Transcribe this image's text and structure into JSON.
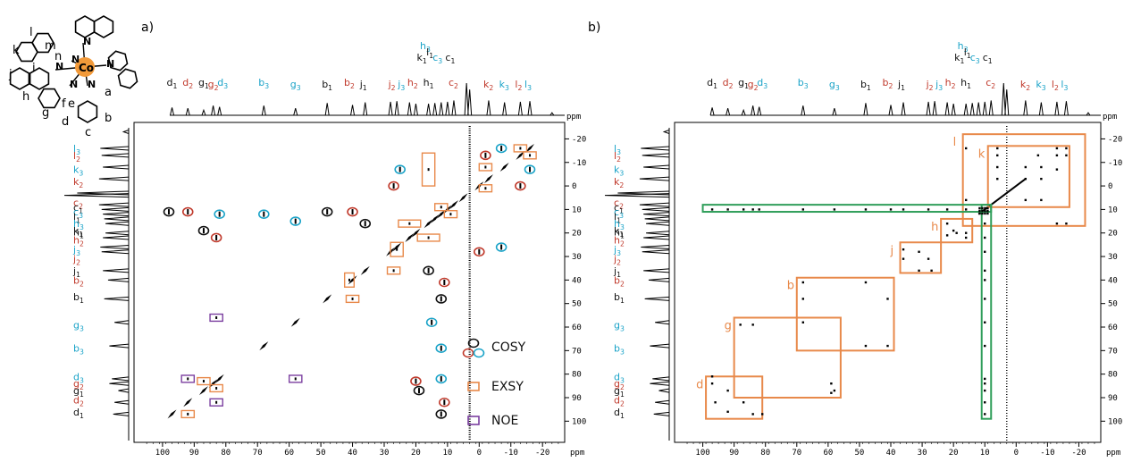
{
  "figure": {
    "panels": [
      {
        "label": "a)"
      },
      {
        "label": "b)"
      }
    ],
    "axis_unit": "ppm",
    "x_ticks": [
      100,
      90,
      80,
      70,
      60,
      50,
      40,
      30,
      20,
      10,
      0,
      -10,
      -20
    ],
    "y_ticks": [
      -20,
      -10,
      0,
      10,
      20,
      30,
      40,
      50,
      60,
      70,
      80,
      90,
      100
    ],
    "colors": {
      "black": "#111111",
      "red": "#c0392b",
      "cyan": "#1aa3c8",
      "orange": "#e8894a",
      "purple": "#7b3fa0",
      "green": "#2f9e5a"
    }
  },
  "structure": {
    "metal_label": "Co",
    "atom_labels": [
      {
        "t": "l",
        "x": 33,
        "y": 40
      },
      {
        "t": "m",
        "x": 50,
        "y": 55
      },
      {
        "t": "k",
        "x": 14,
        "y": 60
      },
      {
        "t": "n",
        "x": 61,
        "y": 67
      },
      {
        "t": "j",
        "x": 10,
        "y": 87
      },
      {
        "t": "i",
        "x": 36,
        "y": 80
      },
      {
        "t": "h",
        "x": 25,
        "y": 112
      },
      {
        "t": "g",
        "x": 47,
        "y": 130
      },
      {
        "t": "f",
        "x": 69,
        "y": 120
      },
      {
        "t": "e",
        "x": 76,
        "y": 120
      },
      {
        "t": "a",
        "x": 117,
        "y": 107
      },
      {
        "t": "b",
        "x": 117,
        "y": 136
      },
      {
        "t": "d",
        "x": 69,
        "y": 140
      },
      {
        "t": "c",
        "x": 95,
        "y": 152
      }
    ],
    "N_labels": [
      {
        "x": 93,
        "y": 50
      },
      {
        "x": 80,
        "y": 70
      },
      {
        "x": 62,
        "y": 78
      },
      {
        "x": 119,
        "y": 75
      },
      {
        "x": 78,
        "y": 98
      },
      {
        "x": 98,
        "y": 98
      }
    ]
  },
  "top_labels": [
    {
      "t": "d",
      "s": "1",
      "c": "black",
      "ppm": 97,
      "lane": 2
    },
    {
      "t": "d",
      "s": "2",
      "c": "red",
      "ppm": 92,
      "lane": 2
    },
    {
      "t": "g",
      "s": "1",
      "c": "black",
      "ppm": 87,
      "lane": 2
    },
    {
      "t": "g",
      "s": "2",
      "c": "red",
      "ppm": 84,
      "lane": 1
    },
    {
      "t": "d",
      "s": "3",
      "c": "cyan",
      "ppm": 81,
      "lane": 2
    },
    {
      "t": "b",
      "s": "3",
      "c": "cyan",
      "ppm": 68,
      "lane": 2
    },
    {
      "t": "g",
      "s": "3",
      "c": "cyan",
      "ppm": 58,
      "lane": 1
    },
    {
      "t": "b",
      "s": "1",
      "c": "black",
      "ppm": 48,
      "lane": 1
    },
    {
      "t": "b",
      "s": "2",
      "c": "red",
      "ppm": 41,
      "lane": 2
    },
    {
      "t": "j",
      "s": "1",
      "c": "black",
      "ppm": 36,
      "lane": 1
    },
    {
      "t": "j",
      "s": "2",
      "c": "red",
      "ppm": 27,
      "lane": 1
    },
    {
      "t": "j",
      "s": "3",
      "c": "cyan",
      "ppm": 24,
      "lane": 1
    },
    {
      "t": "h",
      "s": "2",
      "c": "red",
      "ppm": 21,
      "lane": 2
    },
    {
      "t": "h",
      "s": "1",
      "c": "black",
      "ppm": 16,
      "lane": 2
    },
    {
      "t": "h",
      "s": "3",
      "c": "cyan",
      "ppm": 17,
      "lane": 6
    },
    {
      "t": "k",
      "s": "1",
      "c": "black",
      "ppm": 18,
      "lane": 4
    },
    {
      "t": "l",
      "s": "1",
      "c": "black",
      "ppm": 15,
      "lane": 5
    },
    {
      "t": "c",
      "s": "3",
      "c": "cyan",
      "ppm": 13,
      "lane": 4
    },
    {
      "t": "c",
      "s": "1",
      "c": "black",
      "ppm": 9,
      "lane": 4
    },
    {
      "t": "c",
      "s": "2",
      "c": "red",
      "ppm": 8,
      "lane": 2
    },
    {
      "t": "k",
      "s": "2",
      "c": "red",
      "ppm": -3,
      "lane": 1
    },
    {
      "t": "k",
      "s": "3",
      "c": "cyan",
      "ppm": -8,
      "lane": 1
    },
    {
      "t": "l",
      "s": "2",
      "c": "red",
      "ppm": -13,
      "lane": 1
    },
    {
      "t": "l",
      "s": "3",
      "c": "cyan",
      "ppm": -16,
      "lane": 1
    }
  ],
  "side_labels": [
    {
      "t": "l",
      "s": "3",
      "c": "cyan",
      "ppm": -16
    },
    {
      "t": "l",
      "s": "2",
      "c": "red",
      "ppm": -13
    },
    {
      "t": "k",
      "s": "3",
      "c": "cyan",
      "ppm": -7
    },
    {
      "t": "k",
      "s": "2",
      "c": "red",
      "ppm": -2
    },
    {
      "t": "c",
      "s": "2",
      "c": "red",
      "ppm": 7
    },
    {
      "t": "c",
      "s": "1",
      "c": "black",
      "ppm": 9
    },
    {
      "t": "c",
      "s": "3",
      "c": "cyan",
      "ppm": 11
    },
    {
      "t": "l",
      "s": "1",
      "c": "black",
      "ppm": 13
    },
    {
      "t": "h",
      "s": "3",
      "c": "cyan",
      "ppm": 16
    },
    {
      "t": "k",
      "s": "1",
      "c": "black",
      "ppm": 19
    },
    {
      "t": "h",
      "s": "1",
      "c": "black",
      "ppm": 19.5
    },
    {
      "t": "h",
      "s": "2",
      "c": "red",
      "ppm": 23
    },
    {
      "t": "j",
      "s": "3",
      "c": "cyan",
      "ppm": 27
    },
    {
      "t": "j",
      "s": "2",
      "c": "red",
      "ppm": 31
    },
    {
      "t": "j",
      "s": "1",
      "c": "black",
      "ppm": 36
    },
    {
      "t": "b",
      "s": "2",
      "c": "red",
      "ppm": 40
    },
    {
      "t": "b",
      "s": "1",
      "c": "black",
      "ppm": 47
    },
    {
      "t": "g",
      "s": "3",
      "c": "cyan",
      "ppm": 59
    },
    {
      "t": "b",
      "s": "3",
      "c": "cyan",
      "ppm": 69
    },
    {
      "t": "d",
      "s": "3",
      "c": "cyan",
      "ppm": 81
    },
    {
      "t": "g",
      "s": "2",
      "c": "red",
      "ppm": 84
    },
    {
      "t": "g",
      "s": "1",
      "c": "black",
      "ppm": 87
    },
    {
      "t": "d",
      "s": "2",
      "c": "red",
      "ppm": 91
    },
    {
      "t": "d",
      "s": "1",
      "c": "black",
      "ppm": 96
    }
  ],
  "legend": [
    {
      "label": "COSY",
      "kind": "cosy"
    },
    {
      "label": "EXSY",
      "kind": "exsy"
    },
    {
      "label": "NOE",
      "kind": "noe"
    }
  ],
  "chart_data": {
    "type": "scatter",
    "title": "",
    "xlabel": "ppm",
    "ylabel": "ppm",
    "xlim": [
      109,
      -27
    ],
    "ylim": [
      -27,
      109
    ],
    "reversed_x": true,
    "peaks_1d": [
      {
        "ppm": 97,
        "h": 0.24
      },
      {
        "ppm": 92,
        "h": 0.22
      },
      {
        "ppm": 87,
        "h": 0.16
      },
      {
        "ppm": 84,
        "h": 0.3
      },
      {
        "ppm": 82,
        "h": 0.26
      },
      {
        "ppm": 68,
        "h": 0.3
      },
      {
        "ppm": 58,
        "h": 0.22
      },
      {
        "ppm": 48,
        "h": 0.38
      },
      {
        "ppm": 40,
        "h": 0.32
      },
      {
        "ppm": 36,
        "h": 0.4
      },
      {
        "ppm": 28,
        "h": 0.42
      },
      {
        "ppm": 26,
        "h": 0.44
      },
      {
        "ppm": 22,
        "h": 0.4
      },
      {
        "ppm": 20,
        "h": 0.36
      },
      {
        "ppm": 16,
        "h": 0.36
      },
      {
        "ppm": 14,
        "h": 0.38
      },
      {
        "ppm": 12,
        "h": 0.4
      },
      {
        "ppm": 10,
        "h": 0.42
      },
      {
        "ppm": 8,
        "h": 0.46
      },
      {
        "ppm": 4,
        "h": 1.0
      },
      {
        "ppm": 3,
        "h": 0.8
      },
      {
        "ppm": -3,
        "h": 0.46
      },
      {
        "ppm": -8,
        "h": 0.4
      },
      {
        "ppm": -13,
        "h": 0.42
      },
      {
        "ppm": -16,
        "h": 0.44
      },
      {
        "ppm": -23,
        "h": 0.08
      }
    ],
    "panel_a": {
      "diagonal_peaks": [
        [
          97,
          97
        ],
        [
          92,
          92
        ],
        [
          87,
          87
        ],
        [
          84,
          84
        ],
        [
          82,
          82
        ],
        [
          68,
          68
        ],
        [
          58,
          58
        ],
        [
          48,
          48
        ],
        [
          40,
          40
        ],
        [
          36,
          36
        ],
        [
          28,
          28
        ],
        [
          26,
          26
        ],
        [
          22,
          22
        ],
        [
          20,
          20
        ],
        [
          16,
          16
        ],
        [
          14,
          14
        ],
        [
          12,
          12
        ],
        [
          10,
          10
        ],
        [
          8,
          8
        ],
        [
          5,
          5
        ],
        [
          0,
          0
        ],
        [
          -3,
          -3
        ],
        [
          -8,
          -8
        ],
        [
          -13,
          -13
        ],
        [
          -16,
          -16
        ]
      ],
      "cosy": [
        {
          "x": 98,
          "y": 11,
          "c": "black"
        },
        {
          "x": 92,
          "y": 11,
          "c": "red"
        },
        {
          "x": 82,
          "y": 12,
          "c": "cyan"
        },
        {
          "x": 68,
          "y": 12,
          "c": "cyan"
        },
        {
          "x": 58,
          "y": 15,
          "c": "cyan"
        },
        {
          "x": 48,
          "y": 11,
          "c": "black"
        },
        {
          "x": 40,
          "y": 11,
          "c": "red"
        },
        {
          "x": 36,
          "y": 16,
          "c": "black"
        },
        {
          "x": 87,
          "y": 19,
          "c": "black"
        },
        {
          "x": 83,
          "y": 22,
          "c": "red"
        },
        {
          "x": 25,
          "y": -7,
          "c": "cyan"
        },
        {
          "x": 27,
          "y": 0,
          "c": "red"
        },
        {
          "x": -7,
          "y": -16,
          "c": "cyan"
        },
        {
          "x": -2,
          "y": -13,
          "c": "red"
        },
        {
          "x": -16,
          "y": -7,
          "c": "cyan"
        },
        {
          "x": -13,
          "y": 0,
          "c": "red"
        },
        {
          "x": -7,
          "y": 26,
          "c": "cyan"
        },
        {
          "x": 0,
          "y": 28,
          "c": "red"
        },
        {
          "x": 16,
          "y": 36,
          "c": "black"
        },
        {
          "x": 11,
          "y": 41,
          "c": "red"
        },
        {
          "x": 12,
          "y": 48,
          "c": "black"
        },
        {
          "x": 15,
          "y": 58,
          "c": "cyan"
        },
        {
          "x": 12,
          "y": 69,
          "c": "cyan"
        },
        {
          "x": 12,
          "y": 82,
          "c": "cyan"
        },
        {
          "x": 20,
          "y": 83,
          "c": "red"
        },
        {
          "x": 19,
          "y": 87,
          "c": "black"
        },
        {
          "x": 11,
          "y": 92,
          "c": "red"
        },
        {
          "x": 12,
          "y": 97,
          "c": "black"
        }
      ],
      "exsy": [
        {
          "x": 16,
          "y": -7,
          "w": 4,
          "h": 14
        },
        {
          "x": -2,
          "y": -8,
          "w": 4,
          "h": 3
        },
        {
          "x": -2,
          "y": 1,
          "w": 4,
          "h": 3
        },
        {
          "x": -13,
          "y": -16,
          "w": 4,
          "h": 3
        },
        {
          "x": -16,
          "y": -13,
          "w": 4,
          "h": 3
        },
        {
          "x": 12,
          "y": 9,
          "w": 4,
          "h": 3
        },
        {
          "x": 9,
          "y": 12,
          "w": 4,
          "h": 3
        },
        {
          "x": 22,
          "y": 16,
          "w": 7,
          "h": 3
        },
        {
          "x": 16,
          "y": 22,
          "w": 7,
          "h": 3
        },
        {
          "x": 26,
          "y": 27,
          "w": 4,
          "h": 6
        },
        {
          "x": 27,
          "y": 36,
          "w": 4,
          "h": 3
        },
        {
          "x": 41,
          "y": 40,
          "w": 3,
          "h": 6
        },
        {
          "x": 40,
          "y": 48,
          "w": 4,
          "h": 3
        },
        {
          "x": 87,
          "y": 83,
          "w": 4,
          "h": 3
        },
        {
          "x": 83,
          "y": 86,
          "w": 4,
          "h": 3
        },
        {
          "x": 92,
          "y": 97,
          "w": 4,
          "h": 3
        }
      ],
      "noe": [
        {
          "x": 83,
          "y": 56,
          "w": 4,
          "h": 3
        },
        {
          "x": 92,
          "y": 82,
          "w": 4,
          "h": 3
        },
        {
          "x": 58,
          "y": 82,
          "w": 4,
          "h": 3
        },
        {
          "x": 83,
          "y": 92,
          "w": 4,
          "h": 3
        }
      ]
    },
    "panel_b": {
      "diagonal_line": [
        [
          12,
          12
        ],
        [
          -3,
          -3
        ]
      ],
      "boxes": [
        {
          "label": "l",
          "x1": 17,
          "x2": -22,
          "y1": -22,
          "y2": 17,
          "color": "orange"
        },
        {
          "label": "k",
          "x1": 9,
          "x2": -17,
          "y1": -17,
          "y2": 9,
          "color": "orange"
        },
        {
          "label": "h",
          "x1": 24,
          "x2": 14,
          "y1": 14,
          "y2": 24,
          "color": "orange"
        },
        {
          "label": "j",
          "x1": 37,
          "x2": 24,
          "y1": 24,
          "y2": 37,
          "color": "orange"
        },
        {
          "label": "b",
          "x1": 70,
          "x2": 39,
          "y1": 39,
          "y2": 70,
          "color": "orange"
        },
        {
          "label": "g",
          "x1": 90,
          "x2": 56,
          "y1": 56,
          "y2": 90,
          "color": "orange"
        },
        {
          "label": "d",
          "x1": 99,
          "x2": 81,
          "y1": 81,
          "y2": 99,
          "color": "orange"
        },
        {
          "label": "",
          "x1": 100,
          "x2": 8,
          "y1": 8,
          "y2": 11,
          "color": "green"
        },
        {
          "label": "",
          "x1": 11,
          "x2": 8,
          "y1": 8,
          "y2": 99,
          "color": "green"
        }
      ],
      "cross_peaks": [
        [
          97,
          81
        ],
        [
          97,
          84
        ],
        [
          92,
          87
        ],
        [
          87,
          92
        ],
        [
          84,
          97
        ],
        [
          81,
          97
        ],
        [
          92,
          96
        ],
        [
          96,
          92
        ],
        [
          88,
          59
        ],
        [
          84,
          59
        ],
        [
          59,
          88
        ],
        [
          59,
          84
        ],
        [
          58,
          87
        ],
        [
          68,
          48
        ],
        [
          68,
          41
        ],
        [
          48,
          68
        ],
        [
          41,
          68
        ],
        [
          48,
          41
        ],
        [
          41,
          48
        ],
        [
          68,
          58
        ],
        [
          36,
          27
        ],
        [
          27,
          36
        ],
        [
          28,
          31
        ],
        [
          31,
          28
        ],
        [
          36,
          31
        ],
        [
          31,
          36
        ],
        [
          22,
          16
        ],
        [
          16,
          22
        ],
        [
          20,
          19
        ],
        [
          19,
          20
        ],
        [
          22,
          21
        ],
        [
          16,
          20
        ],
        [
          -13,
          -16
        ],
        [
          -16,
          -13
        ],
        [
          -13,
          -13
        ],
        [
          -16,
          -16
        ],
        [
          -3,
          -8
        ],
        [
          -8,
          -3
        ],
        [
          -3,
          -3
        ],
        [
          -8,
          -8
        ],
        [
          -13,
          -7
        ],
        [
          -7,
          -13
        ],
        [
          -3,
          6
        ],
        [
          6,
          -3
        ],
        [
          -8,
          6
        ],
        [
          6,
          -8
        ],
        [
          16,
          -16
        ],
        [
          16,
          6
        ],
        [
          -16,
          16
        ],
        [
          -13,
          16
        ],
        [
          6,
          -13
        ],
        [
          6,
          -16
        ],
        [
          97,
          10
        ],
        [
          92,
          10
        ],
        [
          87,
          10
        ],
        [
          84,
          10
        ],
        [
          82,
          10
        ],
        [
          68,
          10
        ],
        [
          58,
          10
        ],
        [
          48,
          10
        ],
        [
          40,
          10
        ],
        [
          36,
          10
        ],
        [
          28,
          10
        ],
        [
          22,
          10
        ],
        [
          16,
          10
        ],
        [
          10,
          97
        ],
        [
          10,
          92
        ],
        [
          10,
          87
        ],
        [
          10,
          84
        ],
        [
          10,
          82
        ],
        [
          10,
          68
        ],
        [
          10,
          58
        ],
        [
          10,
          48
        ],
        [
          10,
          40
        ],
        [
          10,
          36
        ],
        [
          10,
          28
        ],
        [
          10,
          22
        ],
        [
          10,
          16
        ]
      ]
    }
  }
}
